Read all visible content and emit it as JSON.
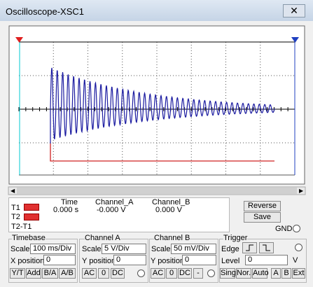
{
  "window": {
    "title": "Oscilloscope-XSC1"
  },
  "readout": {
    "cursors": [
      "T1",
      "T2",
      "T2-T1"
    ],
    "columns": [
      "Time",
      "Channel_A",
      "Channel_B"
    ],
    "values": [
      "0.000 s",
      "-0.000 V",
      "0.000 V"
    ]
  },
  "buttons": [
    "Reverse",
    "Save"
  ],
  "gnd": "GND",
  "timebase": {
    "title": "Timebase",
    "scale_label": "Scale",
    "scale": "100 ms/Div",
    "position_label": "X position",
    "position": "0",
    "modes": [
      "Y/T",
      "Add",
      "B/A",
      "A/B"
    ]
  },
  "channel_a": {
    "title": "Channel A",
    "scale_label": "Scale",
    "scale": "5 V/Div",
    "position_label": "Y position",
    "position": "0",
    "coupling": [
      "AC",
      "0",
      "DC"
    ]
  },
  "channel_b": {
    "title": "Channel B",
    "scale_label": "Scale",
    "scale": "50 mV/Div",
    "position_label": "Y position",
    "position": "0",
    "coupling": [
      "AC",
      "0",
      "DC",
      "-"
    ]
  },
  "trigger": {
    "title": "Trigger",
    "edge_label": "Edge",
    "level_label": "Level",
    "level": "0",
    "level_unit": "V",
    "modes": [
      "Sing.",
      "Nor.",
      "Auto"
    ],
    "sources": [
      "A",
      "B",
      "Ext"
    ]
  }
}
